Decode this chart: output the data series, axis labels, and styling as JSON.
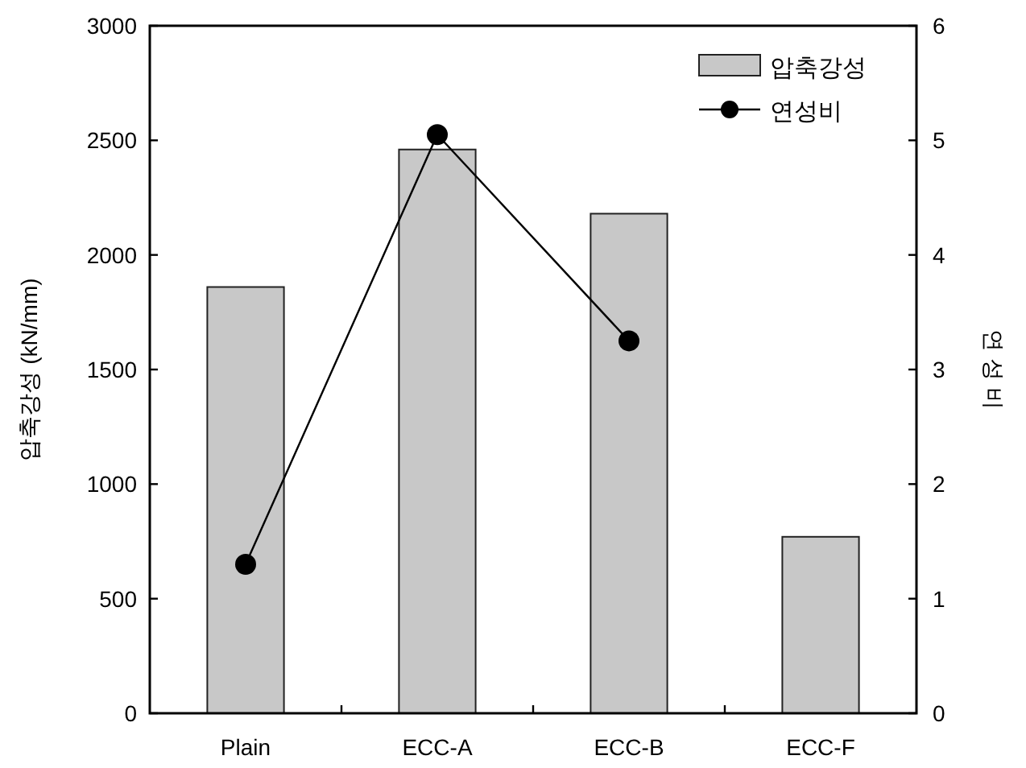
{
  "chart_data": {
    "type": "bar",
    "categories": [
      "Plain",
      "ECC-A",
      "ECC-B",
      "ECC-F"
    ],
    "ylabel": "압축강성 (kN/mm)",
    "y2label": "연 성 비",
    "ylim": [
      0,
      3000
    ],
    "yticks": [
      0,
      500,
      1000,
      1500,
      2000,
      2500,
      3000
    ],
    "y2lim": [
      0,
      6
    ],
    "y2ticks": [
      0,
      1,
      2,
      3,
      4,
      5,
      6
    ],
    "legend": "top right",
    "grid": false,
    "series": [
      {
        "name": "압축강성",
        "color": "#c8c8c8",
        "values": [
          1860,
          2460,
          2180,
          770
        ]
      },
      {
        "name": "연성비",
        "type": "line",
        "axis": "y2",
        "color": "#000000",
        "marker": "circle",
        "line_style": "solid",
        "values": [
          1.3,
          5.05,
          3.25,
          null
        ]
      }
    ]
  }
}
